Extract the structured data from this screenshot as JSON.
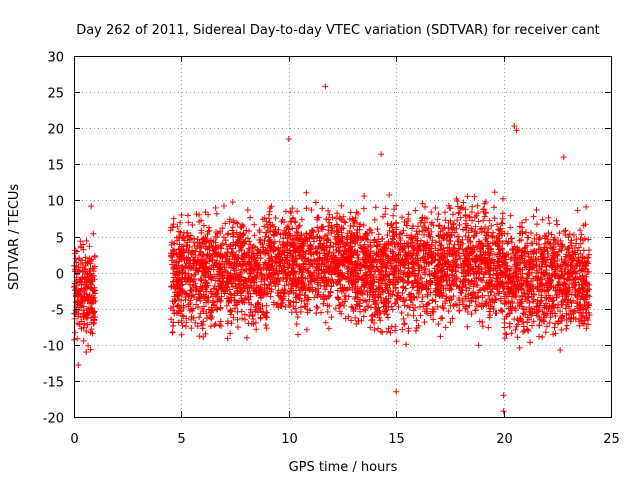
{
  "chart_data": {
    "type": "scatter",
    "title": "Day 262 of 2011, Sidereal Day-to-day VTEC variation (SDTVAR) for receiver cant",
    "xlabel": "GPS time / hours",
    "ylabel": "SDTVAR / TECUs",
    "xlim": [
      0,
      25
    ],
    "ylim": [
      -20,
      30
    ],
    "xticks": [
      0,
      5,
      10,
      15,
      20,
      25
    ],
    "yticks": [
      -20,
      -15,
      -10,
      -5,
      0,
      5,
      10,
      15,
      20,
      25,
      30
    ],
    "grid": true,
    "marker": "+",
    "color": "#ff0000",
    "series": [
      {
        "name": "SDTVAR",
        "segments": [
          {
            "x_start": 0.0,
            "x_end": 1.0,
            "mean": -2.5,
            "spread": 3.0
          },
          {
            "x_start": 4.5,
            "x_end": 9.0,
            "mean": 0.0,
            "spread": 3.5
          },
          {
            "x_start": 9.0,
            "x_end": 13.0,
            "mean": 1.5,
            "spread": 3.5
          },
          {
            "x_start": 13.0,
            "x_end": 17.0,
            "mean": 0.5,
            "spread": 3.8
          },
          {
            "x_start": 17.0,
            "x_end": 20.0,
            "mean": 1.5,
            "spread": 3.8
          },
          {
            "x_start": 20.0,
            "x_end": 24.0,
            "mean": -1.0,
            "spread": 3.5
          }
        ],
        "notable_points": [
          {
            "x": 11.7,
            "y": 25.8
          },
          {
            "x": 20.5,
            "y": 20.3
          },
          {
            "x": 20.6,
            "y": 19.7
          },
          {
            "x": 10.0,
            "y": 18.5
          },
          {
            "x": 14.3,
            "y": 16.4
          },
          {
            "x": 22.8,
            "y": 16.0
          },
          {
            "x": 20.0,
            "y": -19.2
          },
          {
            "x": 15.0,
            "y": -16.5
          },
          {
            "x": 20.0,
            "y": -17.0
          },
          {
            "x": 0.8,
            "y": 9.2
          },
          {
            "x": 0.2,
            "y": -12.8
          }
        ]
      }
    ]
  }
}
